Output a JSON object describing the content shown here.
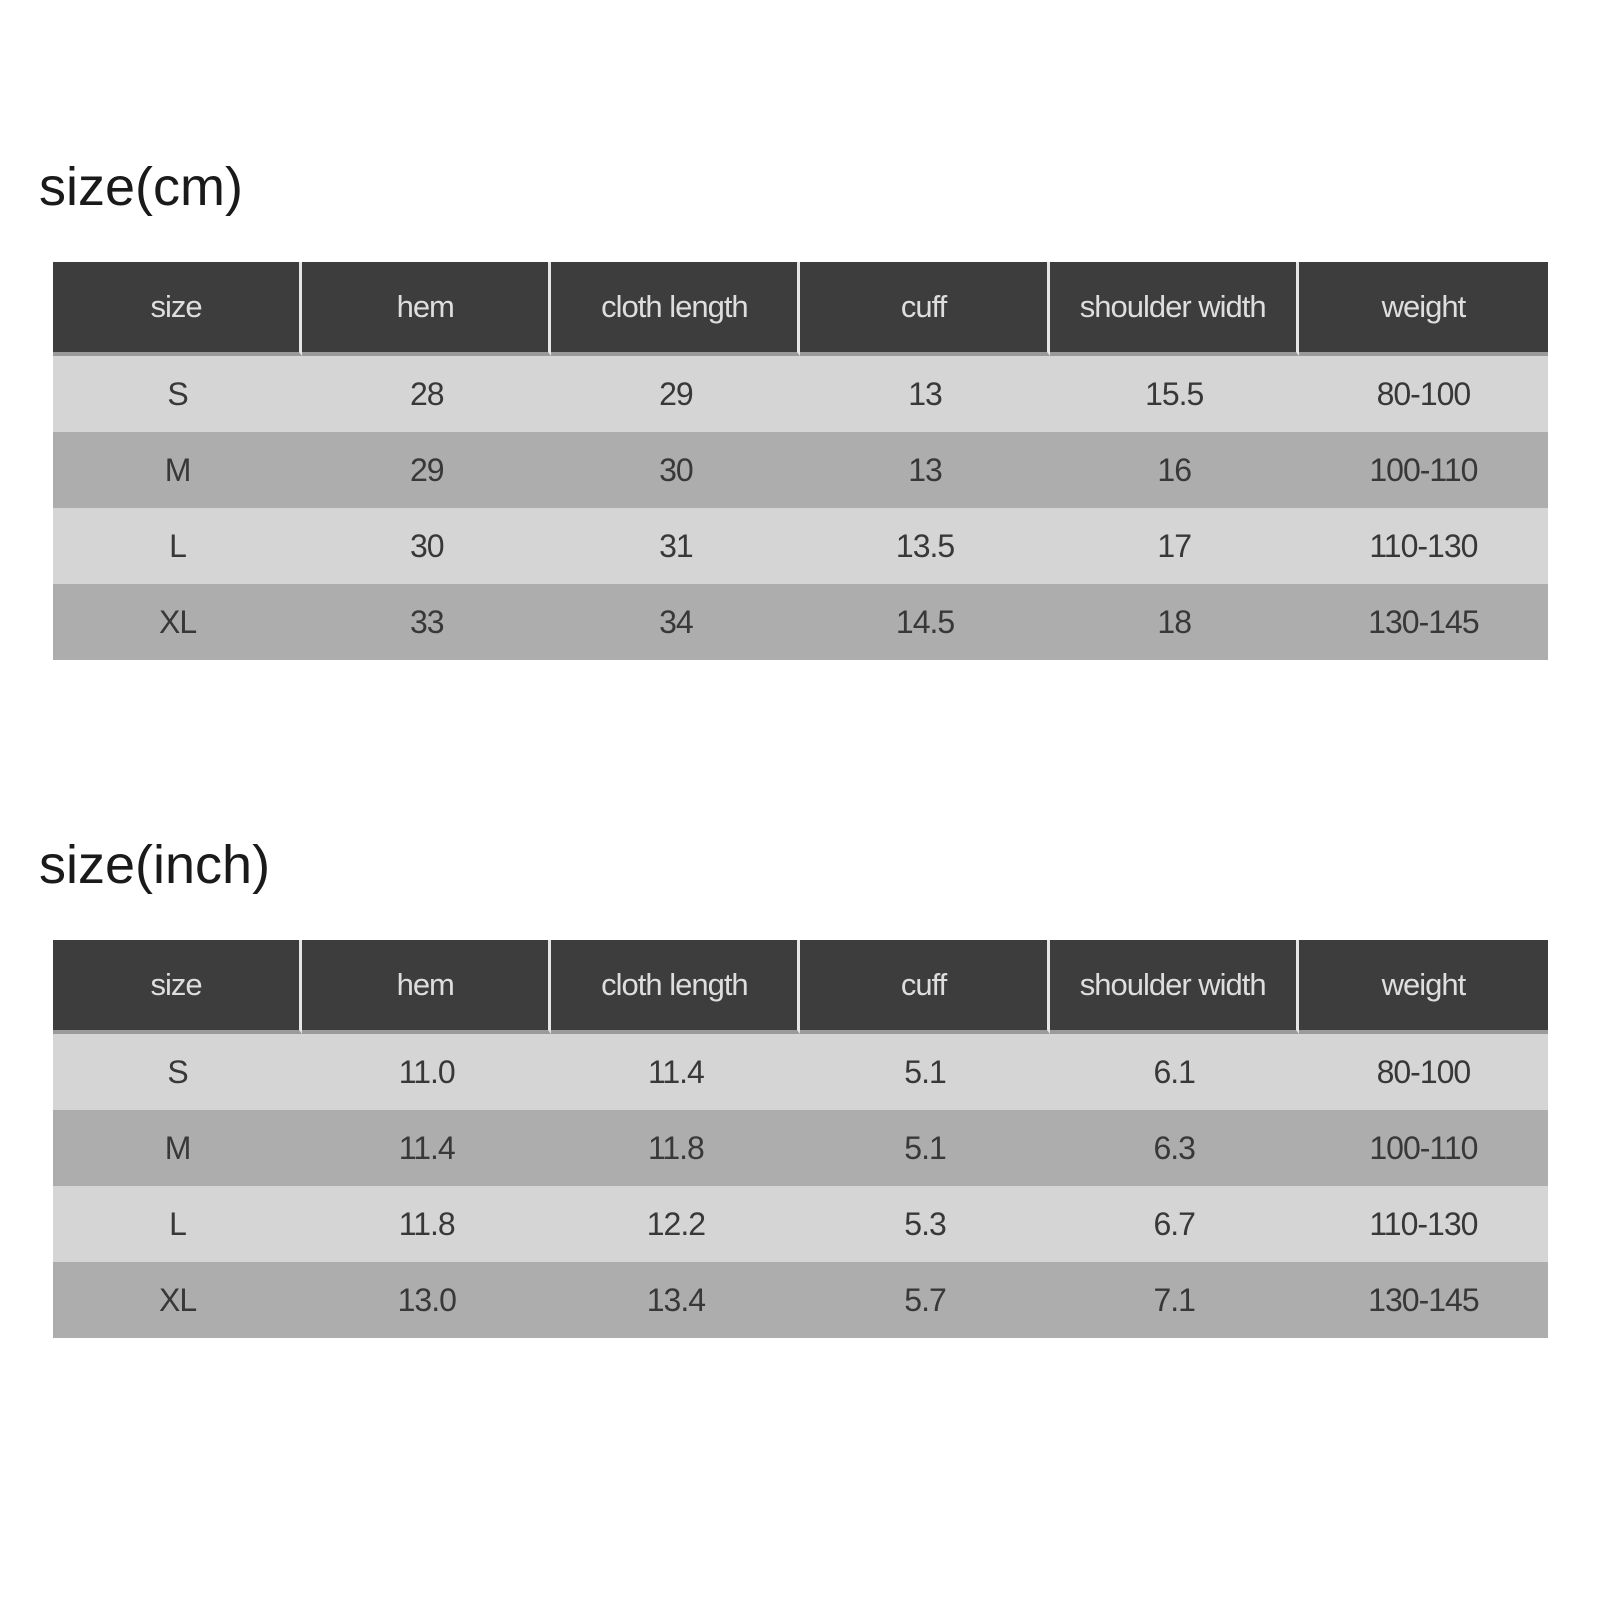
{
  "tables": [
    {
      "title": "size(cm)",
      "headers": [
        "size",
        "hem",
        "cloth length",
        "cuff",
        "shoulder width",
        "weight"
      ],
      "rows": [
        [
          "S",
          "28",
          "29",
          "13",
          "15.5",
          "80-100"
        ],
        [
          "M",
          "29",
          "30",
          "13",
          "16",
          "100-110"
        ],
        [
          "L",
          "30",
          "31",
          "13.5",
          "17",
          "110-130"
        ],
        [
          "XL",
          "33",
          "34",
          "14.5",
          "18",
          "130-145"
        ]
      ]
    },
    {
      "title": "size(inch)",
      "headers": [
        "size",
        "hem",
        "cloth length",
        "cuff",
        "shoulder width",
        "weight"
      ],
      "rows": [
        [
          "S",
          "11.0",
          "11.4",
          "5.1",
          "6.1",
          "80-100"
        ],
        [
          "M",
          "11.4",
          "11.8",
          "5.1",
          "6.3",
          "100-110"
        ],
        [
          "L",
          "11.8",
          "12.2",
          "5.3",
          "6.7",
          "110-130"
        ],
        [
          "XL",
          "13.0",
          "13.4",
          "5.7",
          "7.1",
          "130-145"
        ]
      ]
    }
  ],
  "colors": {
    "header_bg": "#3d3d3d",
    "header_text": "#dedede",
    "row_light": "#d5d5d5",
    "row_dark": "#adadad",
    "cell_text": "#383838"
  }
}
